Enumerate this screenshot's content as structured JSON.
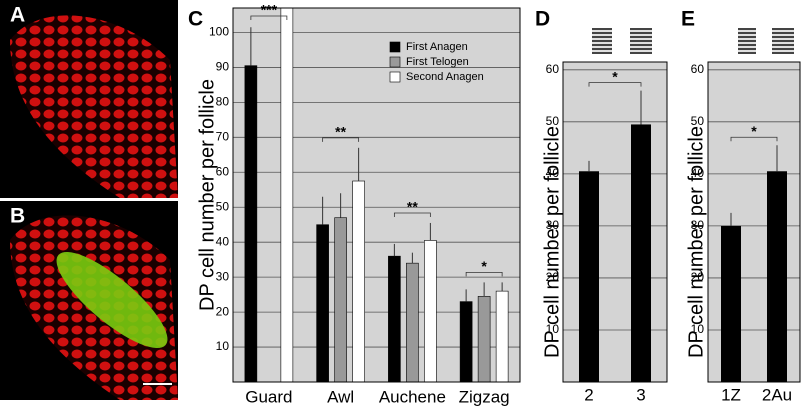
{
  "image_panels": [
    {
      "label": "A"
    },
    {
      "label": "B"
    }
  ],
  "chart_data": [
    {
      "type": "bar",
      "panel_label": "C",
      "y_label": "DP cell number per follicle",
      "categories": [
        "Guard",
        "Awl",
        "Auchene",
        "Zigzag"
      ],
      "series": [
        {
          "name": "First Anagen",
          "color": "#000000",
          "values": [
            90.5,
            45,
            36,
            23
          ],
          "errors": [
            11,
            8,
            3.5,
            3.5
          ]
        },
        {
          "name": "First Telogen",
          "color": "#999999",
          "values": [
            null,
            47,
            34,
            24.5
          ],
          "errors": [
            null,
            7,
            3,
            4
          ]
        },
        {
          "name": "Second Anagen",
          "color": "#ffffff",
          "values": [
            107,
            57.5,
            40.5,
            26
          ],
          "errors": [
            null,
            9.5,
            5,
            2.5
          ]
        }
      ],
      "annotations": [
        "***",
        "**",
        "**",
        "*"
      ],
      "ylim": [
        0,
        107
      ],
      "yticks": [
        10,
        20,
        30,
        40,
        50,
        60,
        70,
        80,
        90,
        100
      ],
      "grid": true,
      "legend": "upper right"
    },
    {
      "type": "bar",
      "panel_label": "D",
      "y_label": "DP cell number per follicle",
      "categories": [
        "2",
        "3"
      ],
      "values": [
        40.5,
        49.5
      ],
      "errors": [
        2,
        6.5
      ],
      "color": "#000000",
      "annotations": [
        "*"
      ],
      "ylim": [
        0,
        61.5
      ],
      "yticks": [
        10,
        20,
        30,
        40,
        50,
        60
      ],
      "grid": true
    },
    {
      "type": "bar",
      "panel_label": "E",
      "y_label": "DP cell number per follicle",
      "categories": [
        "1Z",
        "2Au"
      ],
      "values": [
        30,
        40.5
      ],
      "errors": [
        2.5,
        5
      ],
      "color": "#000000",
      "annotations": [
        "*"
      ],
      "ylim": [
        0,
        61.5
      ],
      "yticks": [
        10,
        20,
        30,
        40,
        50,
        60
      ],
      "grid": true
    }
  ]
}
